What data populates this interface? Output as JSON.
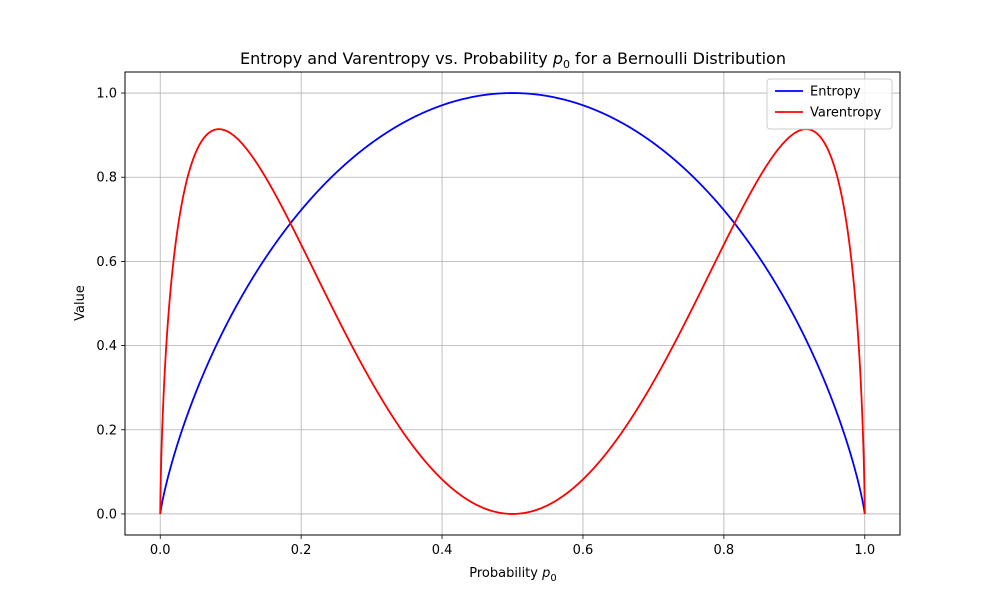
{
  "chart_data": {
    "type": "line",
    "title": {
      "prefix": "Entropy and Varentropy vs. Probability ",
      "symbol": "p",
      "subscript": "0",
      "suffix": " for a Bernoulli Distribution"
    },
    "xlabel": {
      "prefix": "Probability ",
      "symbol": "p",
      "subscript": "0"
    },
    "ylabel": "Value",
    "xlim": [
      -0.05,
      1.05
    ],
    "ylim": [
      -0.05,
      1.05
    ],
    "x_ticks": [
      "0.0",
      "0.2",
      "0.4",
      "0.6",
      "0.8",
      "1.0"
    ],
    "y_ticks": [
      "0.0",
      "0.2",
      "0.4",
      "0.6",
      "0.8",
      "1.0"
    ],
    "grid": true,
    "legend_position": "top-right",
    "x_domain": [
      0.0,
      1.0
    ],
    "series": [
      {
        "name": "Entropy",
        "color": "#0000ff",
        "formula": "bernoulli_entropy_bits"
      },
      {
        "name": "Varentropy",
        "color": "#ff0000",
        "formula": "bernoulli_varentropy_bits"
      }
    ]
  }
}
